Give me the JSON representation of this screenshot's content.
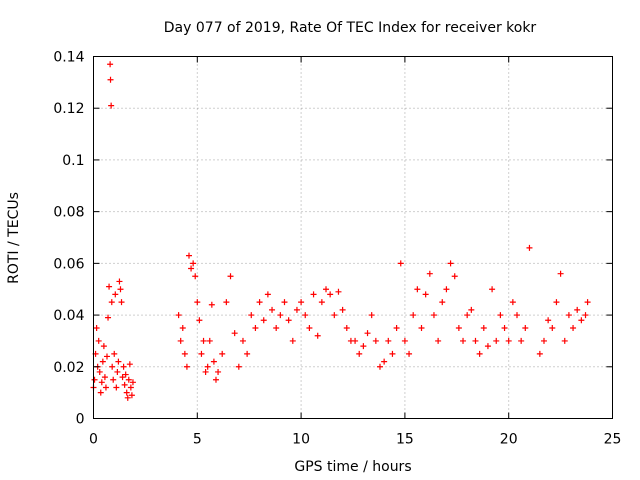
{
  "chart_data": {
    "type": "scatter",
    "title": "Day 077 of 2019, Rate Of TEC Index for receiver kokr",
    "xlabel": "GPS time / hours",
    "ylabel": "ROTI / TECUs",
    "xlim": [
      0,
      25
    ],
    "ylim": [
      0,
      0.14
    ],
    "xticks": [
      0,
      5,
      10,
      15,
      20,
      25
    ],
    "xtick_labels": [
      "0",
      "5",
      "10",
      "15",
      "20",
      "25"
    ],
    "yticks": [
      0,
      0.02,
      0.04,
      0.06,
      0.08,
      0.1,
      0.12,
      0.14
    ],
    "ytick_labels": [
      "0",
      "0.02",
      "0.04",
      "0.06",
      "0.08",
      "0.1",
      "0.12",
      "0.14"
    ],
    "grid": true,
    "marker": "+",
    "color": "#ff0000",
    "series": [
      {
        "name": "ROTI",
        "x": [
          0.0,
          0.05,
          0.1,
          0.15,
          0.2,
          0.25,
          0.3,
          0.35,
          0.4,
          0.45,
          0.5,
          0.55,
          0.6,
          0.65,
          0.7,
          0.75,
          0.8,
          0.82,
          0.85,
          0.88,
          0.9,
          0.95,
          1.0,
          1.05,
          1.1,
          1.15,
          1.2,
          1.25,
          1.3,
          1.35,
          1.4,
          1.45,
          1.5,
          1.55,
          1.6,
          1.65,
          1.7,
          1.75,
          1.8,
          1.85,
          1.9,
          4.1,
          4.2,
          4.3,
          4.4,
          4.5,
          4.6,
          4.7,
          4.8,
          4.9,
          5.0,
          5.1,
          5.2,
          5.3,
          5.4,
          5.5,
          5.6,
          5.7,
          5.8,
          5.9,
          6.0,
          6.2,
          6.4,
          6.6,
          6.8,
          7.0,
          7.2,
          7.4,
          7.6,
          7.8,
          8.0,
          8.2,
          8.4,
          8.6,
          8.8,
          9.0,
          9.2,
          9.4,
          9.6,
          9.8,
          10.0,
          10.2,
          10.4,
          10.6,
          10.8,
          11.0,
          11.2,
          11.4,
          11.6,
          11.8,
          12.0,
          12.2,
          12.4,
          12.6,
          12.8,
          13.0,
          13.2,
          13.4,
          13.6,
          13.8,
          14.0,
          14.2,
          14.4,
          14.6,
          14.8,
          15.0,
          15.2,
          15.4,
          15.6,
          15.8,
          16.0,
          16.2,
          16.4,
          16.6,
          16.8,
          17.0,
          17.2,
          17.4,
          17.6,
          17.8,
          18.0,
          18.2,
          18.4,
          18.6,
          18.8,
          19.0,
          19.2,
          19.4,
          19.6,
          19.8,
          20.0,
          20.2,
          20.4,
          20.6,
          20.8,
          21.0,
          21.5,
          21.7,
          21.9,
          22.1,
          22.3,
          22.5,
          22.7,
          22.9,
          23.1,
          23.3,
          23.5,
          23.7,
          23.8
        ],
        "y": [
          0.012,
          0.015,
          0.025,
          0.035,
          0.02,
          0.03,
          0.018,
          0.01,
          0.014,
          0.022,
          0.028,
          0.016,
          0.012,
          0.024,
          0.039,
          0.051,
          0.137,
          0.131,
          0.121,
          0.045,
          0.02,
          0.015,
          0.025,
          0.048,
          0.012,
          0.018,
          0.022,
          0.053,
          0.05,
          0.045,
          0.016,
          0.02,
          0.013,
          0.017,
          0.01,
          0.008,
          0.015,
          0.021,
          0.012,
          0.009,
          0.014,
          0.04,
          0.03,
          0.035,
          0.025,
          0.02,
          0.063,
          0.058,
          0.06,
          0.055,
          0.045,
          0.038,
          0.025,
          0.03,
          0.018,
          0.02,
          0.03,
          0.044,
          0.022,
          0.015,
          0.018,
          0.025,
          0.045,
          0.055,
          0.033,
          0.02,
          0.03,
          0.025,
          0.04,
          0.035,
          0.045,
          0.038,
          0.048,
          0.042,
          0.035,
          0.04,
          0.045,
          0.038,
          0.03,
          0.042,
          0.045,
          0.04,
          0.035,
          0.048,
          0.032,
          0.045,
          0.05,
          0.048,
          0.04,
          0.049,
          0.042,
          0.035,
          0.03,
          0.03,
          0.025,
          0.028,
          0.033,
          0.04,
          0.03,
          0.02,
          0.022,
          0.03,
          0.025,
          0.035,
          0.06,
          0.03,
          0.025,
          0.04,
          0.05,
          0.035,
          0.048,
          0.056,
          0.04,
          0.03,
          0.045,
          0.05,
          0.06,
          0.055,
          0.035,
          0.03,
          0.04,
          0.042,
          0.03,
          0.025,
          0.035,
          0.028,
          0.05,
          0.03,
          0.04,
          0.035,
          0.03,
          0.045,
          0.04,
          0.03,
          0.035,
          0.066,
          0.025,
          0.03,
          0.038,
          0.035,
          0.045,
          0.056,
          0.03,
          0.04,
          0.035,
          0.042,
          0.038,
          0.04,
          0.045
        ]
      }
    ]
  }
}
